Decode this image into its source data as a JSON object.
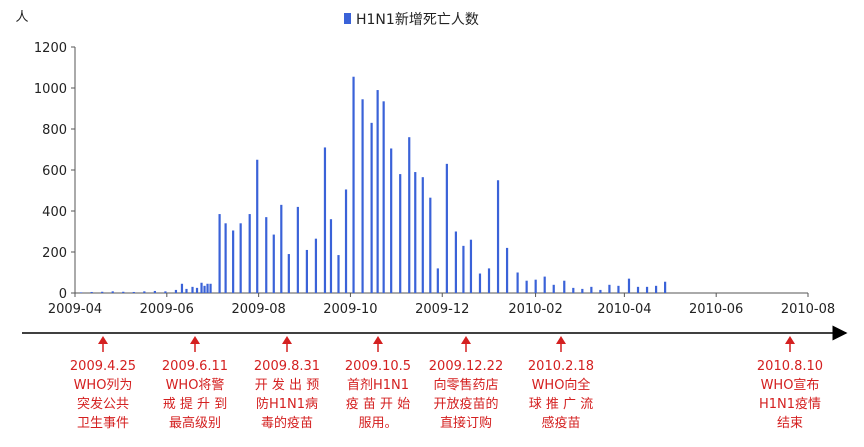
{
  "chart_data": {
    "type": "bar",
    "y_unit": "人",
    "legend": "H1N1新增死亡人数",
    "series_color": "#3a62d8",
    "ylim": [
      0,
      1200
    ],
    "yticks": [
      "0",
      "200",
      "400",
      "600",
      "800",
      "1000",
      "1200"
    ],
    "xlim": [
      "2009-04-01",
      "2010-08-01"
    ],
    "xticks": [
      "2009-04",
      "2009-06",
      "2009-08",
      "2009-10",
      "2009-12",
      "2010-02",
      "2010-04",
      "2010-06",
      "2010-08"
    ],
    "points": [
      {
        "x": "2009-04-05",
        "y": 3
      },
      {
        "x": "2009-04-12",
        "y": 5
      },
      {
        "x": "2009-04-19",
        "y": 6
      },
      {
        "x": "2009-04-26",
        "y": 8
      },
      {
        "x": "2009-05-03",
        "y": 6
      },
      {
        "x": "2009-05-10",
        "y": 5
      },
      {
        "x": "2009-05-17",
        "y": 8
      },
      {
        "x": "2009-05-24",
        "y": 10
      },
      {
        "x": "2009-05-31",
        "y": 8
      },
      {
        "x": "2009-06-07",
        "y": 15
      },
      {
        "x": "2009-06-11",
        "y": 45
      },
      {
        "x": "2009-06-14",
        "y": 20
      },
      {
        "x": "2009-06-18",
        "y": 30
      },
      {
        "x": "2009-06-21",
        "y": 25
      },
      {
        "x": "2009-06-24",
        "y": 50
      },
      {
        "x": "2009-06-26",
        "y": 35
      },
      {
        "x": "2009-06-28",
        "y": 45
      },
      {
        "x": "2009-06-30",
        "y": 45
      },
      {
        "x": "2009-07-06",
        "y": 385
      },
      {
        "x": "2009-07-10",
        "y": 340
      },
      {
        "x": "2009-07-15",
        "y": 305
      },
      {
        "x": "2009-07-20",
        "y": 340
      },
      {
        "x": "2009-07-26",
        "y": 385
      },
      {
        "x": "2009-07-31",
        "y": 650
      },
      {
        "x": "2009-08-06",
        "y": 370
      },
      {
        "x": "2009-08-11",
        "y": 285
      },
      {
        "x": "2009-08-16",
        "y": 430
      },
      {
        "x": "2009-08-21",
        "y": 190
      },
      {
        "x": "2009-08-27",
        "y": 420
      },
      {
        "x": "2009-09-02",
        "y": 210
      },
      {
        "x": "2009-09-08",
        "y": 265
      },
      {
        "x": "2009-09-14",
        "y": 710
      },
      {
        "x": "2009-09-18",
        "y": 360
      },
      {
        "x": "2009-09-23",
        "y": 185
      },
      {
        "x": "2009-09-28",
        "y": 505
      },
      {
        "x": "2009-10-03",
        "y": 1055
      },
      {
        "x": "2009-10-09",
        "y": 945
      },
      {
        "x": "2009-10-15",
        "y": 830
      },
      {
        "x": "2009-10-19",
        "y": 990
      },
      {
        "x": "2009-10-23",
        "y": 935
      },
      {
        "x": "2009-10-28",
        "y": 705
      },
      {
        "x": "2009-11-03",
        "y": 580
      },
      {
        "x": "2009-11-09",
        "y": 760
      },
      {
        "x": "2009-11-13",
        "y": 590
      },
      {
        "x": "2009-11-18",
        "y": 565
      },
      {
        "x": "2009-11-23",
        "y": 465
      },
      {
        "x": "2009-11-28",
        "y": 120
      },
      {
        "x": "2009-12-04",
        "y": 630
      },
      {
        "x": "2009-12-10",
        "y": 300
      },
      {
        "x": "2009-12-15",
        "y": 230
      },
      {
        "x": "2009-12-20",
        "y": 260
      },
      {
        "x": "2009-12-26",
        "y": 95
      },
      {
        "x": "2010-01-01",
        "y": 120
      },
      {
        "x": "2010-01-07",
        "y": 550
      },
      {
        "x": "2010-01-13",
        "y": 220
      },
      {
        "x": "2010-01-20",
        "y": 100
      },
      {
        "x": "2010-01-26",
        "y": 60
      },
      {
        "x": "2010-02-01",
        "y": 65
      },
      {
        "x": "2010-02-07",
        "y": 80
      },
      {
        "x": "2010-02-13",
        "y": 40
      },
      {
        "x": "2010-02-20",
        "y": 60
      },
      {
        "x": "2010-02-26",
        "y": 25
      },
      {
        "x": "2010-03-04",
        "y": 20
      },
      {
        "x": "2010-03-10",
        "y": 30
      },
      {
        "x": "2010-03-16",
        "y": 15
      },
      {
        "x": "2010-03-22",
        "y": 40
      },
      {
        "x": "2010-03-28",
        "y": 35
      },
      {
        "x": "2010-04-04",
        "y": 70
      },
      {
        "x": "2010-04-10",
        "y": 30
      },
      {
        "x": "2010-04-16",
        "y": 30
      },
      {
        "x": "2010-04-22",
        "y": 35
      },
      {
        "x": "2010-04-28",
        "y": 55
      }
    ]
  },
  "timeline": {
    "color": "#d42020",
    "events": [
      {
        "date": "2009.4.25",
        "lines": [
          "WHO列为",
          "突发公共",
          "卫生事件"
        ]
      },
      {
        "date": "2009.6.11",
        "lines": [
          "WHO将警",
          "戒 提 升 到",
          "最高级别"
        ]
      },
      {
        "date": "2009.8.31",
        "lines": [
          "开 发 出 预",
          "防H1N1病",
          "毒的疫苗"
        ]
      },
      {
        "date": "2009.10.5",
        "lines": [
          "首剂H1N1",
          "疫 苗 开 始",
          "服用。"
        ]
      },
      {
        "date": "2009.12.22",
        "lines": [
          "向零售药店",
          "开放疫苗的",
          "直接订购"
        ]
      },
      {
        "date": "2010.2.18",
        "lines": [
          "WHO向全",
          "球 推 广 流",
          "感疫苗"
        ]
      },
      {
        "date": "2010.8.10",
        "lines": [
          "WHO宣布",
          "H1N1疫情",
          "结束"
        ]
      }
    ]
  }
}
